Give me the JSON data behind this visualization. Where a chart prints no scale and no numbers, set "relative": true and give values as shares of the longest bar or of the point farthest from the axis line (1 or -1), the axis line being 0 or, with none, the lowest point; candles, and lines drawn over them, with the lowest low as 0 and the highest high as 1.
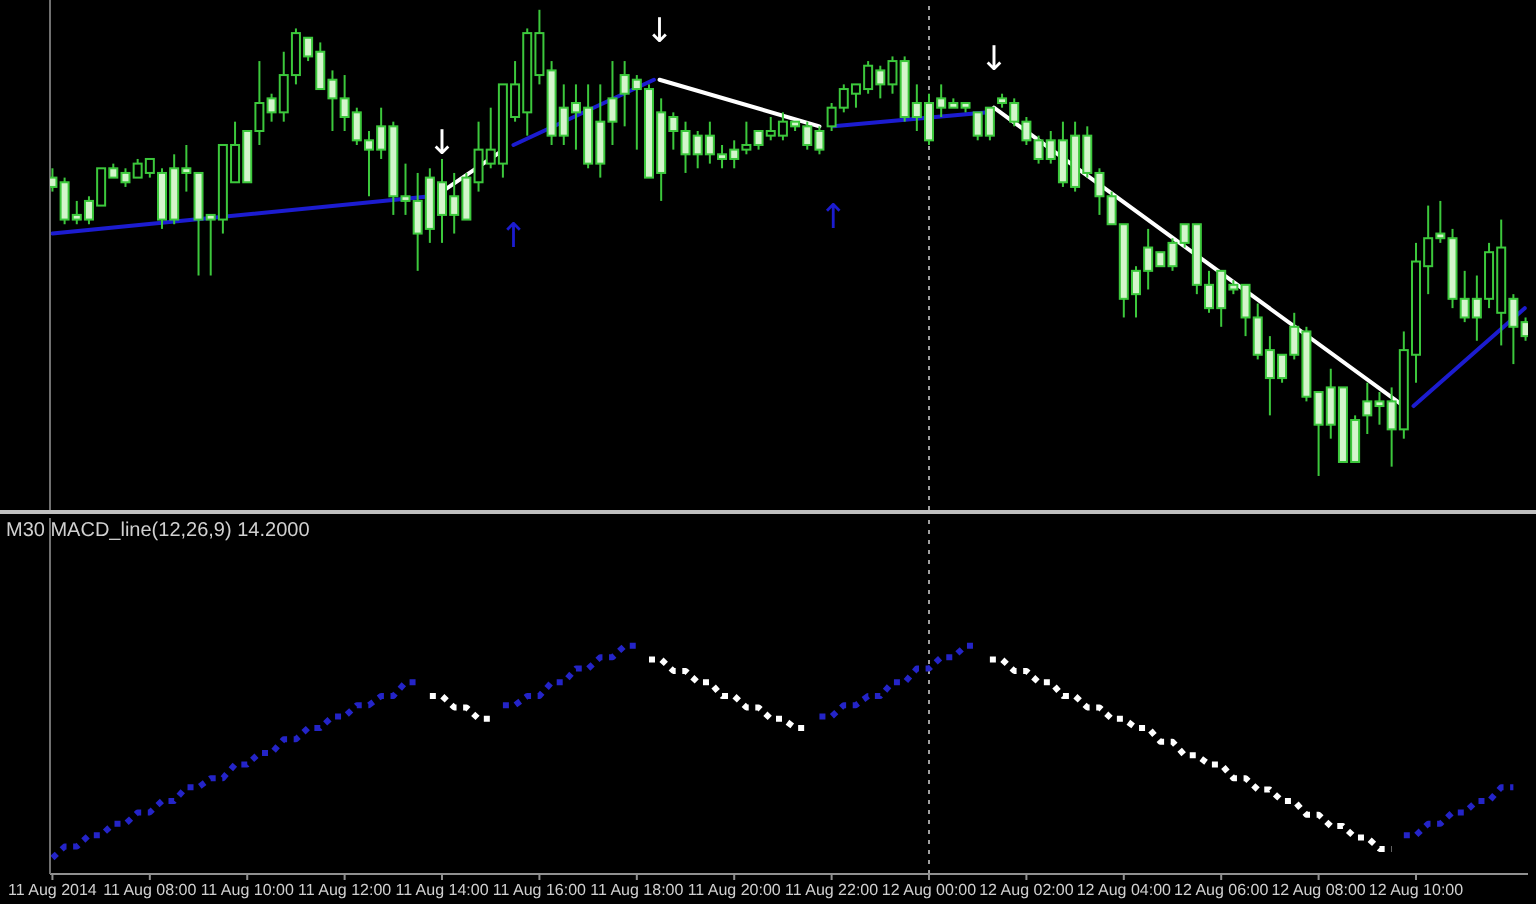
{
  "chart_data": [
    {
      "type": "candlestick",
      "relative": true,
      "color": "#3cc83c",
      "tick_labels": false,
      "xlim": [
        "2014-08-11T05:57",
        "2014-08-12T12:18"
      ],
      "x": [
        "2014-08-11T06:00",
        "2014-08-11T06:15",
        "2014-08-11T06:30",
        "2014-08-11T06:45",
        "2014-08-11T07:00",
        "2014-08-11T07:15",
        "2014-08-11T07:30",
        "2014-08-11T07:45",
        "2014-08-11T08:00",
        "2014-08-11T08:15",
        "2014-08-11T08:30",
        "2014-08-11T08:45",
        "2014-08-11T09:00",
        "2014-08-11T09:15",
        "2014-08-11T09:30",
        "2014-08-11T09:45",
        "2014-08-11T10:00",
        "2014-08-11T10:15",
        "2014-08-11T10:30",
        "2014-08-11T10:45",
        "2014-08-11T11:00",
        "2014-08-11T11:15",
        "2014-08-11T11:30",
        "2014-08-11T11:45",
        "2014-08-11T12:00",
        "2014-08-11T12:15",
        "2014-08-11T12:30",
        "2014-08-11T12:45",
        "2014-08-11T13:00",
        "2014-08-11T13:15",
        "2014-08-11T13:30",
        "2014-08-11T13:45",
        "2014-08-11T14:00",
        "2014-08-11T14:15",
        "2014-08-11T14:30",
        "2014-08-11T14:45",
        "2014-08-11T15:00",
        "2014-08-11T15:15",
        "2014-08-11T15:30",
        "2014-08-11T15:45",
        "2014-08-11T16:00",
        "2014-08-11T16:15",
        "2014-08-11T16:30",
        "2014-08-11T16:45",
        "2014-08-11T17:00",
        "2014-08-11T17:15",
        "2014-08-11T17:30",
        "2014-08-11T17:45",
        "2014-08-11T18:00",
        "2014-08-11T18:15",
        "2014-08-11T18:30",
        "2014-08-11T18:45",
        "2014-08-11T19:00",
        "2014-08-11T19:15",
        "2014-08-11T19:30",
        "2014-08-11T19:45",
        "2014-08-11T20:00",
        "2014-08-11T20:15",
        "2014-08-11T20:30",
        "2014-08-11T20:45",
        "2014-08-11T21:00",
        "2014-08-11T21:15",
        "2014-08-11T21:30",
        "2014-08-11T21:45",
        "2014-08-11T22:00",
        "2014-08-11T22:15",
        "2014-08-11T22:30",
        "2014-08-11T22:45",
        "2014-08-11T23:00",
        "2014-08-11T23:15",
        "2014-08-11T23:30",
        "2014-08-11T23:45",
        "2014-08-12T00:00",
        "2014-08-12T00:15",
        "2014-08-12T00:30",
        "2014-08-12T00:45",
        "2014-08-12T01:00",
        "2014-08-12T01:15",
        "2014-08-12T01:30",
        "2014-08-12T01:45",
        "2014-08-12T02:00",
        "2014-08-12T02:15",
        "2014-08-12T02:30",
        "2014-08-12T02:45",
        "2014-08-12T03:00",
        "2014-08-12T03:15",
        "2014-08-12T03:30",
        "2014-08-12T03:45",
        "2014-08-12T04:00",
        "2014-08-12T04:15",
        "2014-08-12T04:30",
        "2014-08-12T04:45",
        "2014-08-12T05:00",
        "2014-08-12T05:15",
        "2014-08-12T05:30",
        "2014-08-12T05:45",
        "2014-08-12T06:00",
        "2014-08-12T06:15",
        "2014-08-12T06:30",
        "2014-08-12T06:45",
        "2014-08-12T07:00",
        "2014-08-12T07:15",
        "2014-08-12T07:30",
        "2014-08-12T07:45",
        "2014-08-12T08:00",
        "2014-08-12T08:15",
        "2014-08-12T08:30",
        "2014-08-12T08:45",
        "2014-08-12T09:00",
        "2014-08-12T09:15",
        "2014-08-12T09:30",
        "2014-08-12T09:45",
        "2014-08-12T10:00",
        "2014-08-12T10:15",
        "2014-08-12T10:30",
        "2014-08-12T10:45",
        "2014-08-12T11:00",
        "2014-08-12T11:15",
        "2014-08-12T11:30",
        "2014-08-12T11:45",
        "2014-08-12T12:00",
        "2014-08-12T12:15"
      ],
      "ohlc": [
        [
          0.64,
          0.66,
          0.61,
          0.62
        ],
        [
          0.63,
          0.64,
          0.54,
          0.55
        ],
        [
          0.56,
          0.59,
          0.54,
          0.55
        ],
        [
          0.59,
          0.6,
          0.54,
          0.55
        ],
        [
          0.58,
          0.66,
          0.58,
          0.66
        ],
        [
          0.66,
          0.67,
          0.64,
          0.64
        ],
        [
          0.65,
          0.66,
          0.62,
          0.63
        ],
        [
          0.64,
          0.68,
          0.64,
          0.67
        ],
        [
          0.65,
          0.68,
          0.64,
          0.68
        ],
        [
          0.65,
          0.66,
          0.53,
          0.55
        ],
        [
          0.66,
          0.69,
          0.54,
          0.55
        ],
        [
          0.66,
          0.71,
          0.61,
          0.65
        ],
        [
          0.65,
          0.65,
          0.43,
          0.55
        ],
        [
          0.56,
          0.56,
          0.43,
          0.55
        ],
        [
          0.55,
          0.71,
          0.52,
          0.71
        ],
        [
          0.63,
          0.76,
          0.63,
          0.71
        ],
        [
          0.74,
          0.74,
          0.63,
          0.63
        ],
        [
          0.74,
          0.89,
          0.71,
          0.8
        ],
        [
          0.81,
          0.82,
          0.76,
          0.78
        ],
        [
          0.78,
          0.91,
          0.76,
          0.86
        ],
        [
          0.86,
          0.96,
          0.84,
          0.95
        ],
        [
          0.94,
          0.94,
          0.89,
          0.9
        ],
        [
          0.91,
          0.93,
          0.83,
          0.83
        ],
        [
          0.85,
          0.87,
          0.74,
          0.81
        ],
        [
          0.81,
          0.86,
          0.74,
          0.77
        ],
        [
          0.78,
          0.79,
          0.71,
          0.72
        ],
        [
          0.72,
          0.74,
          0.6,
          0.7
        ],
        [
          0.75,
          0.79,
          0.68,
          0.7
        ],
        [
          0.75,
          0.76,
          0.56,
          0.6
        ],
        [
          0.6,
          0.67,
          0.56,
          0.59
        ],
        [
          0.59,
          0.65,
          0.44,
          0.52
        ],
        [
          0.64,
          0.66,
          0.5,
          0.53
        ],
        [
          0.63,
          0.68,
          0.5,
          0.56
        ],
        [
          0.6,
          0.65,
          0.52,
          0.56
        ],
        [
          0.64,
          0.65,
          0.55,
          0.55
        ],
        [
          0.63,
          0.76,
          0.61,
          0.7
        ],
        [
          0.67,
          0.79,
          0.66,
          0.7
        ],
        [
          0.67,
          0.84,
          0.64,
          0.84
        ],
        [
          0.77,
          0.89,
          0.76,
          0.84
        ],
        [
          0.78,
          0.96,
          0.73,
          0.95
        ],
        [
          0.86,
          1.0,
          0.84,
          0.95
        ],
        [
          0.87,
          0.89,
          0.71,
          0.73
        ],
        [
          0.79,
          0.84,
          0.71,
          0.73
        ],
        [
          0.8,
          0.84,
          0.7,
          0.78
        ],
        [
          0.79,
          0.84,
          0.66,
          0.67
        ],
        [
          0.76,
          0.84,
          0.64,
          0.67
        ],
        [
          0.81,
          0.89,
          0.71,
          0.76
        ],
        [
          0.86,
          0.89,
          0.75,
          0.82
        ],
        [
          0.85,
          0.86,
          0.7,
          0.83
        ],
        [
          0.83,
          0.84,
          0.64,
          0.64
        ],
        [
          0.78,
          0.81,
          0.59,
          0.65
        ],
        [
          0.77,
          0.78,
          0.7,
          0.74
        ],
        [
          0.74,
          0.76,
          0.65,
          0.69
        ],
        [
          0.73,
          0.74,
          0.66,
          0.69
        ],
        [
          0.73,
          0.76,
          0.67,
          0.69
        ],
        [
          0.69,
          0.71,
          0.66,
          0.68
        ],
        [
          0.7,
          0.72,
          0.66,
          0.68
        ],
        [
          0.7,
          0.76,
          0.69,
          0.71
        ],
        [
          0.74,
          0.74,
          0.7,
          0.71
        ],
        [
          0.73,
          0.77,
          0.72,
          0.74
        ],
        [
          0.73,
          0.78,
          0.72,
          0.76
        ],
        [
          0.76,
          0.76,
          0.74,
          0.75
        ],
        [
          0.75,
          0.76,
          0.7,
          0.71
        ],
        [
          0.74,
          0.75,
          0.69,
          0.7
        ],
        [
          0.75,
          0.8,
          0.74,
          0.79
        ],
        [
          0.79,
          0.84,
          0.78,
          0.83
        ],
        [
          0.82,
          0.84,
          0.79,
          0.84
        ],
        [
          0.83,
          0.89,
          0.82,
          0.88
        ],
        [
          0.87,
          0.88,
          0.81,
          0.84
        ],
        [
          0.84,
          0.9,
          0.82,
          0.89
        ],
        [
          0.89,
          0.9,
          0.76,
          0.77
        ],
        [
          0.8,
          0.84,
          0.74,
          0.77
        ],
        [
          0.8,
          0.82,
          0.71,
          0.72
        ],
        [
          0.81,
          0.84,
          0.77,
          0.79
        ],
        [
          0.8,
          0.81,
          0.79,
          0.79
        ],
        [
          0.8,
          0.8,
          0.78,
          0.79
        ],
        [
          0.78,
          0.78,
          0.72,
          0.73
        ],
        [
          0.79,
          0.79,
          0.72,
          0.73
        ],
        [
          0.81,
          0.82,
          0.79,
          0.8
        ],
        [
          0.8,
          0.81,
          0.75,
          0.76
        ],
        [
          0.76,
          0.77,
          0.71,
          0.72
        ],
        [
          0.72,
          0.73,
          0.67,
          0.68
        ],
        [
          0.72,
          0.74,
          0.67,
          0.68
        ],
        [
          0.72,
          0.76,
          0.62,
          0.63
        ],
        [
          0.73,
          0.76,
          0.61,
          0.62
        ],
        [
          0.73,
          0.75,
          0.64,
          0.65
        ],
        [
          0.65,
          0.66,
          0.56,
          0.6
        ],
        [
          0.6,
          0.61,
          0.54,
          0.54
        ],
        [
          0.54,
          0.54,
          0.34,
          0.38
        ],
        [
          0.44,
          0.45,
          0.34,
          0.39
        ],
        [
          0.49,
          0.53,
          0.4,
          0.44
        ],
        [
          0.48,
          0.48,
          0.45,
          0.45
        ],
        [
          0.5,
          0.51,
          0.44,
          0.45
        ],
        [
          0.54,
          0.54,
          0.49,
          0.5
        ],
        [
          0.54,
          0.54,
          0.39,
          0.41
        ],
        [
          0.41,
          0.44,
          0.35,
          0.36
        ],
        [
          0.44,
          0.44,
          0.32,
          0.36
        ],
        [
          0.41,
          0.42,
          0.39,
          0.4
        ],
        [
          0.41,
          0.41,
          0.3,
          0.34
        ],
        [
          0.34,
          0.37,
          0.25,
          0.26
        ],
        [
          0.27,
          0.3,
          0.13,
          0.21
        ],
        [
          0.26,
          0.26,
          0.2,
          0.21
        ],
        [
          0.32,
          0.35,
          0.25,
          0.26
        ],
        [
          0.31,
          0.32,
          0.16,
          0.17
        ],
        [
          0.18,
          0.18,
          0,
          0.11
        ],
        [
          0.19,
          0.23,
          0.08,
          0.11
        ],
        [
          0.19,
          0.19,
          0.03,
          0.03
        ],
        [
          0.12,
          0.13,
          0.03,
          0.03
        ],
        [
          0.16,
          0.2,
          0.09,
          0.13
        ],
        [
          0.16,
          0.18,
          0.11,
          0.15
        ],
        [
          0.16,
          0.19,
          0.02,
          0.1
        ],
        [
          0.1,
          0.31,
          0.08,
          0.27
        ],
        [
          0.26,
          0.5,
          0.2,
          0.46
        ],
        [
          0.45,
          0.58,
          0.39,
          0.51
        ],
        [
          0.52,
          0.59,
          0.5,
          0.51
        ],
        [
          0.51,
          0.53,
          0.36,
          0.38
        ],
        [
          0.38,
          0.44,
          0.33,
          0.34
        ],
        [
          0.38,
          0.43,
          0.29,
          0.34
        ],
        [
          0.38,
          0.5,
          0.36,
          0.48
        ],
        [
          0.35,
          0.55,
          0.28,
          0.49
        ],
        [
          0.38,
          0.39,
          0.24,
          0.32
        ],
        [
          0.33,
          0.34,
          0.29,
          0.3
        ]
      ],
      "series": [
        {
          "type": "line",
          "color": "#1c1cd0",
          "x": [
            "2014-08-11T06:00",
            "2014-08-11T13:46",
            "2014-08-11T14:00",
            "2014-08-11T15:28",
            "2014-08-11T18:21",
            "2014-08-11T18:30",
            "2014-08-11T22:02",
            "2014-08-12T01:13",
            "2014-08-12T01:30",
            "2014-08-12T09:57",
            "2014-08-12T12:14"
          ],
          "values": [
            0.52,
            0.6,
            null,
            0.71,
            0.85,
            null,
            0.75,
            0.78,
            null,
            0.15,
            0.36
          ]
        },
        {
          "type": "line",
          "color": "#ffffff",
          "x": [
            "2014-08-11T14:00",
            "2014-08-11T15:16",
            "2014-08-11T15:24",
            "2014-08-11T18:28",
            "2014-08-11T21:45",
            "2014-08-11T21:54",
            "2014-08-12T01:20",
            "2014-08-12T09:45"
          ],
          "values": [
            0.61,
            0.7,
            null,
            0.85,
            0.75,
            null,
            0.79,
            0.15
          ]
        }
      ],
      "annotations": [
        "↓",
        "↑",
        "↓",
        "↑",
        "↓"
      ],
      "ref_lines": [
        {
          "axis": "x",
          "value": "2014-08-12T00:00",
          "color": "#a0a0a0",
          "line_style": "dotted"
        }
      ]
    },
    {
      "type": "line",
      "title": "M30 MACD_line(12,26,9) 14.2000",
      "relative": true,
      "line_style": "dotted",
      "tick_labels": "x",
      "xlim": [
        "2014-08-11T05:57",
        "2014-08-12T12:18"
      ],
      "x": [
        "2014-08-11T06:00",
        "2014-08-11T06:15",
        "2014-08-11T06:30",
        "2014-08-11T06:45",
        "2014-08-11T07:00",
        "2014-08-11T07:15",
        "2014-08-11T07:30",
        "2014-08-11T07:45",
        "2014-08-11T08:00",
        "2014-08-11T08:15",
        "2014-08-11T08:30",
        "2014-08-11T08:45",
        "2014-08-11T09:00",
        "2014-08-11T09:15",
        "2014-08-11T09:30",
        "2014-08-11T09:45",
        "2014-08-11T10:00",
        "2014-08-11T10:15",
        "2014-08-11T10:30",
        "2014-08-11T10:45",
        "2014-08-11T11:00",
        "2014-08-11T11:15",
        "2014-08-11T11:30",
        "2014-08-11T11:45",
        "2014-08-11T12:00",
        "2014-08-11T12:15",
        "2014-08-11T12:30",
        "2014-08-11T12:45",
        "2014-08-11T13:00",
        "2014-08-11T13:15",
        "2014-08-11T13:30",
        "2014-08-11T13:45",
        "2014-08-11T14:00",
        "2014-08-11T14:15",
        "2014-08-11T14:30",
        "2014-08-11T14:45",
        "2014-08-11T15:00",
        "2014-08-11T15:15",
        "2014-08-11T15:30",
        "2014-08-11T15:45",
        "2014-08-11T16:00",
        "2014-08-11T16:15",
        "2014-08-11T16:30",
        "2014-08-11T16:45",
        "2014-08-11T17:00",
        "2014-08-11T17:15",
        "2014-08-11T17:30",
        "2014-08-11T17:45",
        "2014-08-11T18:00",
        "2014-08-11T18:15",
        "2014-08-11T18:30",
        "2014-08-11T18:45",
        "2014-08-11T19:00",
        "2014-08-11T19:15",
        "2014-08-11T19:30",
        "2014-08-11T19:45",
        "2014-08-11T20:00",
        "2014-08-11T20:15",
        "2014-08-11T20:30",
        "2014-08-11T20:45",
        "2014-08-11T21:00",
        "2014-08-11T21:15",
        "2014-08-11T21:30",
        "2014-08-11T21:45",
        "2014-08-11T22:00",
        "2014-08-11T22:15",
        "2014-08-11T22:30",
        "2014-08-11T22:45",
        "2014-08-11T23:00",
        "2014-08-11T23:15",
        "2014-08-11T23:30",
        "2014-08-11T23:45",
        "2014-08-12T00:00",
        "2014-08-12T00:15",
        "2014-08-12T00:30",
        "2014-08-12T00:45",
        "2014-08-12T01:00",
        "2014-08-12T01:15",
        "2014-08-12T01:30",
        "2014-08-12T01:45",
        "2014-08-12T02:00",
        "2014-08-12T02:15",
        "2014-08-12T02:30",
        "2014-08-12T02:45",
        "2014-08-12T03:00",
        "2014-08-12T03:15",
        "2014-08-12T03:30",
        "2014-08-12T03:45",
        "2014-08-12T04:00",
        "2014-08-12T04:15",
        "2014-08-12T04:30",
        "2014-08-12T04:45",
        "2014-08-12T05:00",
        "2014-08-12T05:15",
        "2014-08-12T05:30",
        "2014-08-12T05:45",
        "2014-08-12T06:00",
        "2014-08-12T06:15",
        "2014-08-12T06:30",
        "2014-08-12T06:45",
        "2014-08-12T07:00",
        "2014-08-12T07:15",
        "2014-08-12T07:30",
        "2014-08-12T07:45",
        "2014-08-12T08:00",
        "2014-08-12T08:15",
        "2014-08-12T08:30",
        "2014-08-12T08:45",
        "2014-08-12T09:00",
        "2014-08-12T09:15",
        "2014-08-12T09:30",
        "2014-08-12T09:45",
        "2014-08-12T10:00",
        "2014-08-12T10:15",
        "2014-08-12T10:30",
        "2014-08-12T10:45",
        "2014-08-12T11:00",
        "2014-08-12T11:15",
        "2014-08-12T11:30",
        "2014-08-12T11:45",
        "2014-08-12T12:00"
      ],
      "xticks": [
        {
          "value": "2014-08-11T06:00",
          "label": "11 Aug 2014"
        },
        {
          "value": "2014-08-11T08:00",
          "label": "11 Aug 08:00"
        },
        {
          "value": "2014-08-11T10:00",
          "label": "11 Aug 10:00"
        },
        {
          "value": "2014-08-11T12:00",
          "label": "11 Aug 12:00"
        },
        {
          "value": "2014-08-11T14:00",
          "label": "11 Aug 14:00"
        },
        {
          "value": "2014-08-11T16:00",
          "label": "11 Aug 16:00"
        },
        {
          "value": "2014-08-11T18:00",
          "label": "11 Aug 18:00"
        },
        {
          "value": "2014-08-11T20:00",
          "label": "11 Aug 20:00"
        },
        {
          "value": "2014-08-11T22:00",
          "label": "11 Aug 22:00"
        },
        {
          "value": "2014-08-12T00:00",
          "label": "12 Aug 00:00"
        },
        {
          "value": "2014-08-12T02:00",
          "label": "12 Aug 02:00"
        },
        {
          "value": "2014-08-12T04:00",
          "label": "12 Aug 04:00"
        },
        {
          "value": "2014-08-12T06:00",
          "label": "12 Aug 06:00"
        },
        {
          "value": "2014-08-12T08:00",
          "label": "12 Aug 08:00"
        },
        {
          "value": "2014-08-12T10:00",
          "label": "12 Aug 10:00"
        }
      ],
      "series": [
        {
          "color": "#2424c8",
          "values": [
            0.07,
            0.12,
            0.12,
            0.17,
            0.17,
            0.22,
            0.22,
            0.27,
            0.27,
            0.32,
            0.32,
            0.38,
            0.38,
            0.42,
            0.42,
            0.48,
            0.48,
            0.53,
            0.53,
            0.59,
            0.59,
            0.64,
            0.64,
            0.69,
            0.69,
            0.74,
            0.74,
            0.78,
            0.78,
            0.84,
            0.84,
            null,
            null,
            null,
            null,
            null,
            null,
            0.74,
            0.74,
            0.78,
            0.78,
            0.84,
            0.84,
            0.9,
            0.9,
            0.95,
            0.95,
            1.0,
            1.0,
            null,
            null,
            null,
            null,
            null,
            null,
            null,
            null,
            null,
            null,
            null,
            null,
            null,
            null,
            0.69,
            0.69,
            0.74,
            0.74,
            0.78,
            0.78,
            0.84,
            0.84,
            0.9,
            0.9,
            0.95,
            0.95,
            1.0,
            1.0,
            null,
            null,
            null,
            null,
            null,
            null,
            null,
            null,
            null,
            null,
            null,
            null,
            null,
            null,
            null,
            null,
            null,
            null,
            null,
            null,
            null,
            null,
            null,
            null,
            null,
            null,
            null,
            null,
            null,
            null,
            null,
            null,
            null,
            null,
            0.17,
            0.17,
            0.22,
            0.22,
            0.27,
            0.27,
            0.32,
            0.32,
            0.38,
            0.38
          ]
        },
        {
          "color": "#ffffff",
          "values": [
            null,
            null,
            null,
            null,
            null,
            null,
            null,
            null,
            null,
            null,
            null,
            null,
            null,
            null,
            null,
            null,
            null,
            null,
            null,
            null,
            null,
            null,
            null,
            null,
            null,
            null,
            null,
            null,
            null,
            null,
            null,
            0.78,
            0.78,
            0.73,
            0.73,
            0.68,
            0.68,
            null,
            null,
            null,
            null,
            null,
            null,
            null,
            null,
            null,
            null,
            null,
            null,
            0.94,
            0.94,
            0.89,
            0.89,
            0.84,
            0.84,
            0.78,
            0.78,
            0.73,
            0.73,
            0.68,
            0.68,
            0.64,
            0.64,
            null,
            null,
            null,
            null,
            null,
            null,
            null,
            null,
            null,
            null,
            null,
            null,
            null,
            null,
            0.94,
            0.94,
            0.89,
            0.89,
            0.84,
            0.84,
            0.78,
            0.78,
            0.73,
            0.73,
            0.68,
            0.68,
            0.64,
            0.64,
            0.58,
            0.58,
            0.52,
            0.52,
            0.48,
            0.48,
            0.42,
            0.42,
            0.37,
            0.37,
            0.32,
            0.32,
            0.26,
            0.26,
            0.21,
            0.21,
            0.16,
            0.16,
            0.11,
            0.11,
            null,
            null,
            null,
            null,
            null,
            null,
            null,
            null,
            null,
            null
          ]
        }
      ],
      "ref_lines": [
        {
          "axis": "x",
          "value": "2014-08-12T00:00",
          "color": "#a0a0a0",
          "line_style": "dotted"
        }
      ]
    }
  ]
}
